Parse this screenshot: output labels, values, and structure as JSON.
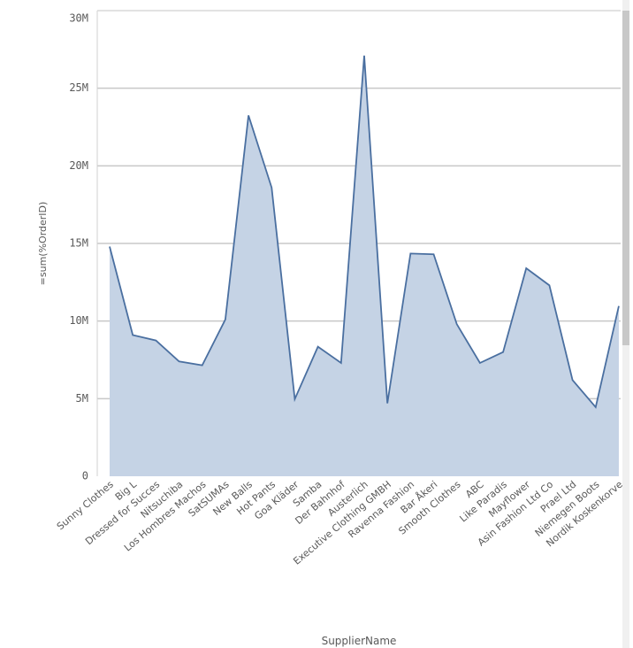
{
  "chart_data": {
    "type": "area",
    "x_label": "SupplierName",
    "y_label": "=sum(%OrderID)",
    "categories": [
      "Sunny Clothes",
      "Big L",
      "Dressed for Succes",
      "Nitsuchiba",
      "Los Hombres Machos",
      "SatSUMAs",
      "New Balls",
      "Hot Pants",
      "Goa Kläder",
      "Samba",
      "Der Bahnhof",
      "Austerlich",
      "Executive Clothing GMBH",
      "Ravenna Fashion",
      "Bar Åkeri",
      "Smooth Clothes",
      "ABC",
      "Like Paradis",
      "Mayflower",
      "Asin Fashion Ltd Co",
      "Prael Ltd",
      "Niemegen Boots",
      "Nordik Koskenkorve"
    ],
    "values": [
      14800000,
      9100000,
      8750000,
      7400000,
      7150000,
      10100000,
      23250000,
      18600000,
      4970000,
      8350000,
      7300000,
      27100000,
      4700000,
      14350000,
      14300000,
      9800000,
      7300000,
      8000000,
      13400000,
      12300000,
      6200000,
      4450000,
      10970000
    ],
    "color": "#4a6fa0",
    "fill": "#c5d3e5",
    "ylim": [
      0,
      30000000
    ],
    "yticks": [
      0,
      {
        "value": 5000000,
        "label": "5M"
      },
      {
        "value": 10000000,
        "label": "10M"
      },
      {
        "value": 15000000,
        "label": "15M"
      },
      {
        "value": 20000000,
        "label": "20M"
      },
      {
        "value": 25000000,
        "label": "25M"
      },
      {
        "value": 30000000,
        "label": "30M"
      }
    ],
    "grid": true
  }
}
